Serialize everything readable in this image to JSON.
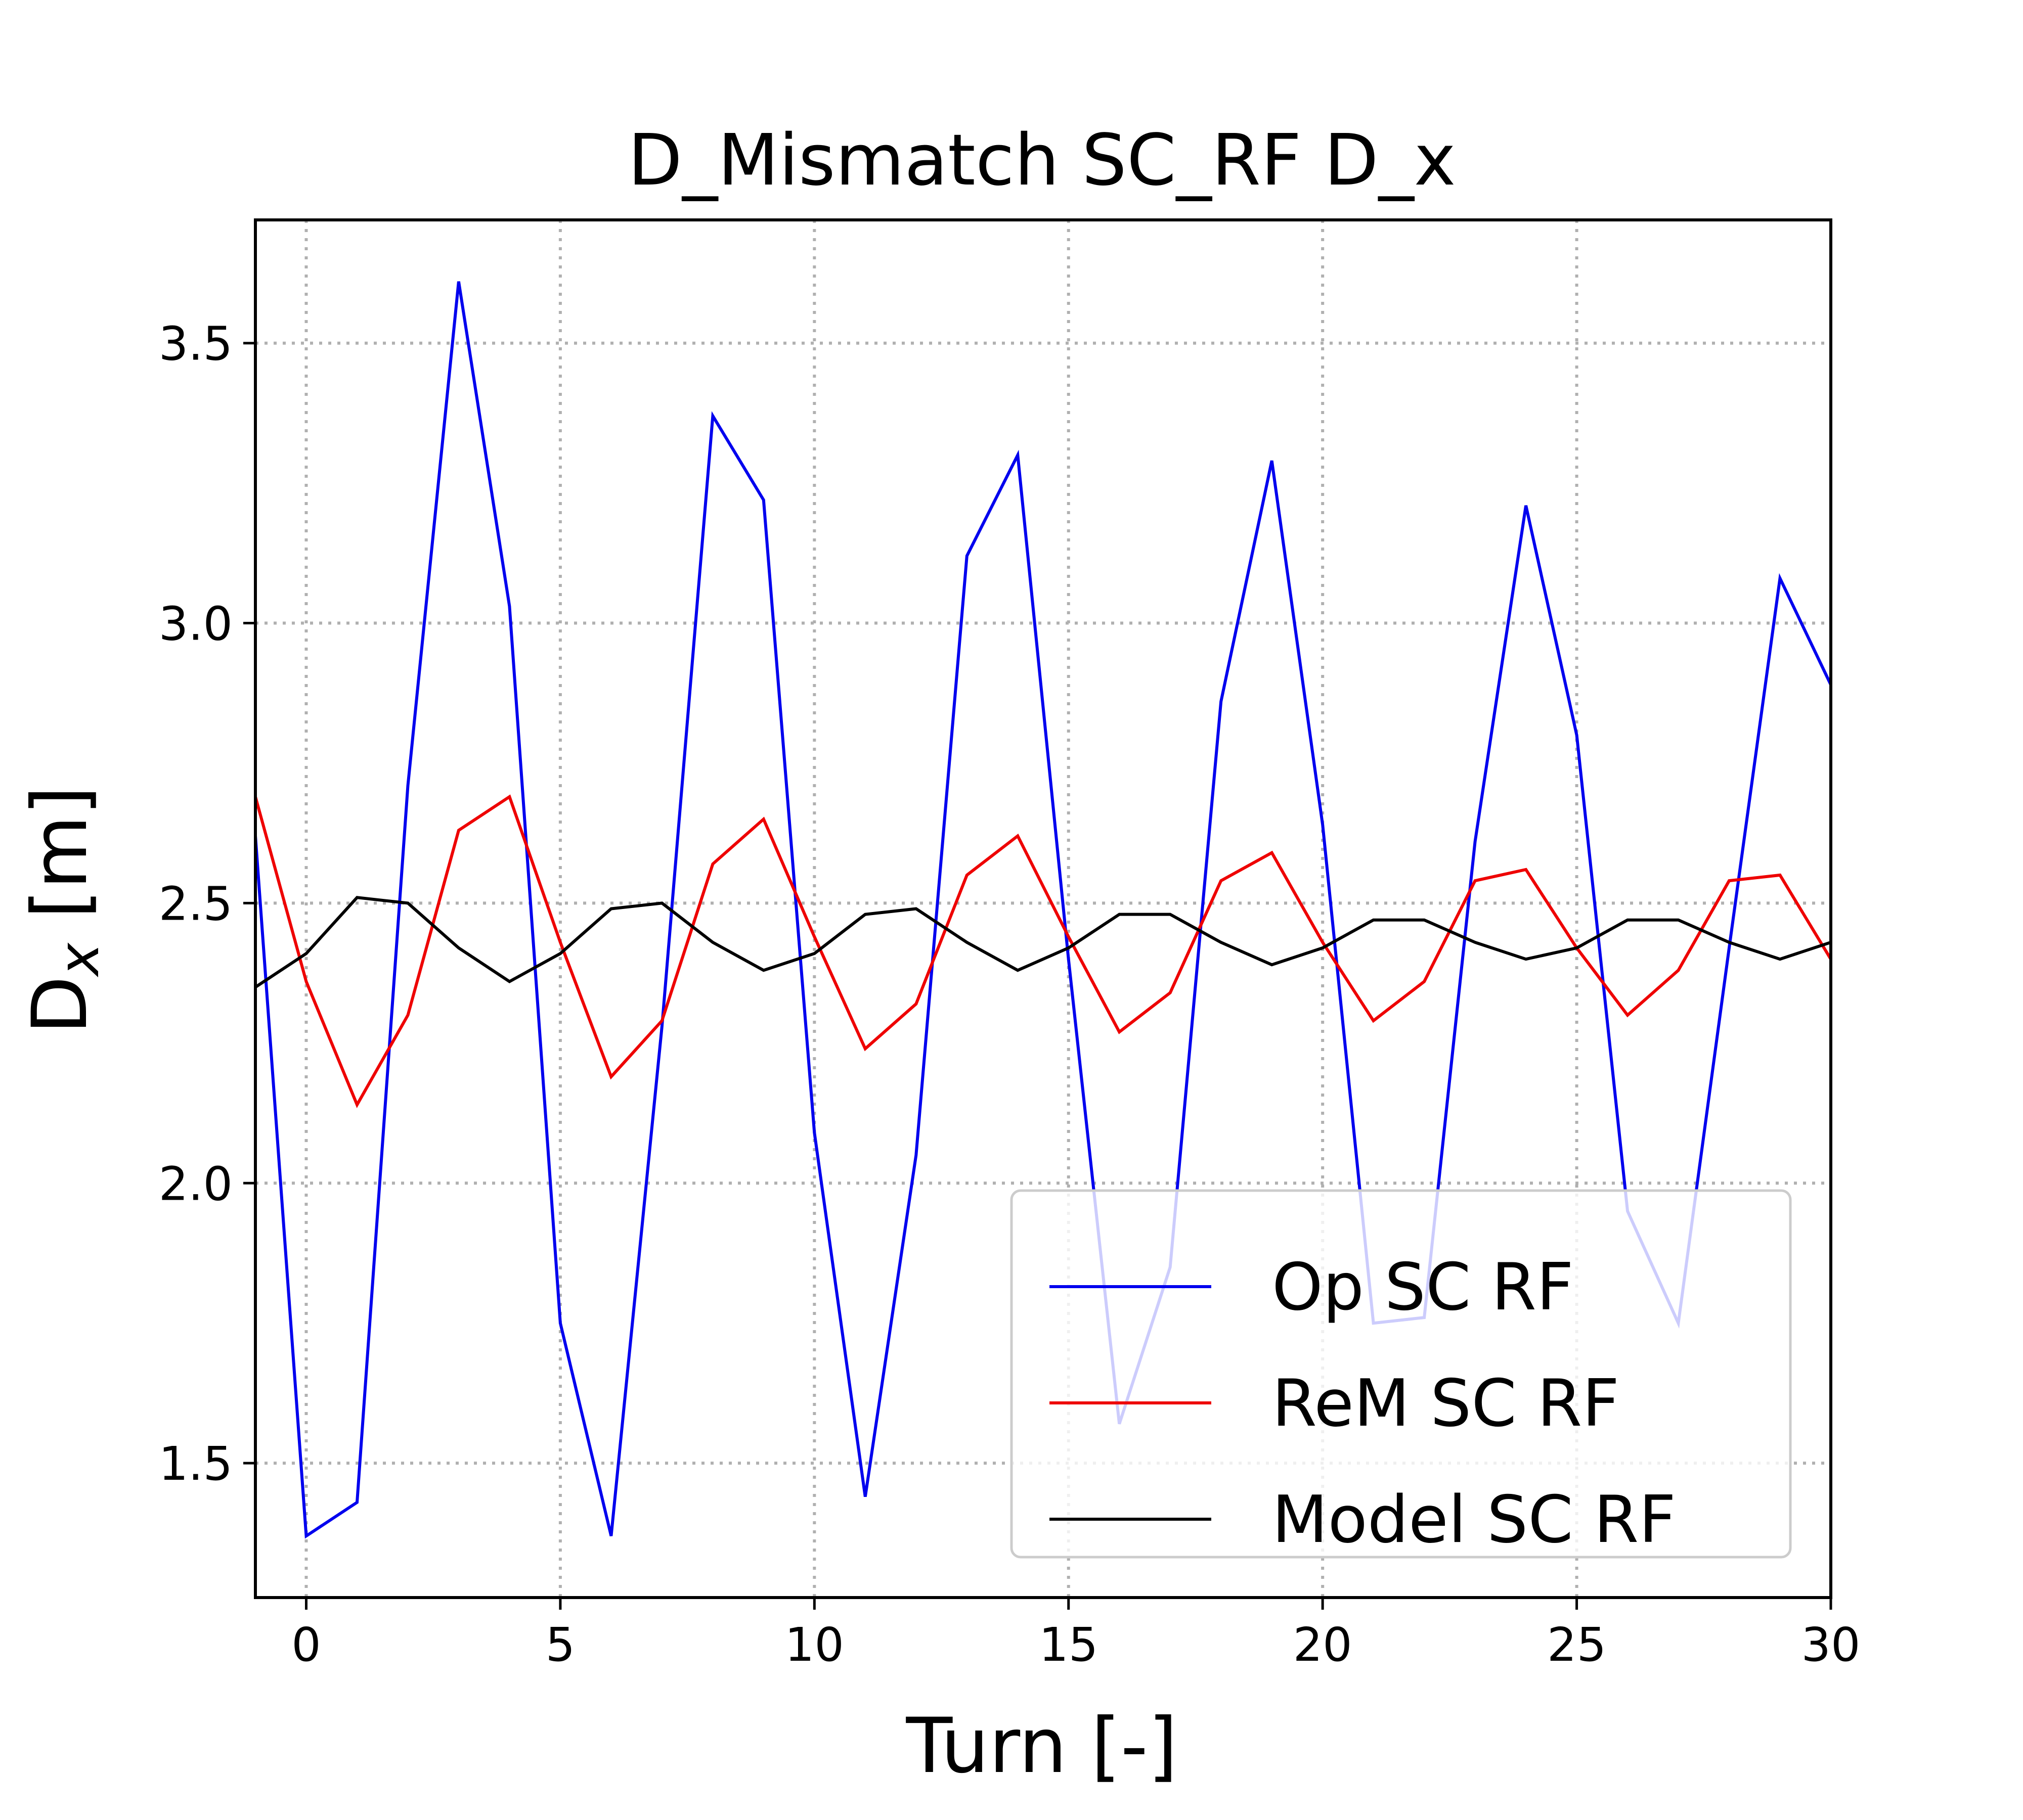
{
  "chart_data": {
    "type": "line",
    "title": "D_Mismatch SC_RF D_x",
    "xlabel": "Turn [-]",
    "ylabel_main": "D",
    "ylabel_sub": "x",
    "ylabel_unit": " [m]",
    "xlim": [
      -1,
      30
    ],
    "ylim": [
      1.26,
      3.72
    ],
    "xticks": [
      0,
      5,
      10,
      15,
      20,
      25,
      30
    ],
    "xtick_labels": [
      "0",
      "5",
      "10",
      "15",
      "20",
      "25",
      "30"
    ],
    "yticks": [
      1.5,
      2.0,
      2.5,
      3.0,
      3.5
    ],
    "ytick_labels": [
      "1.5",
      "2.0",
      "2.5",
      "3.0",
      "3.5"
    ],
    "grid": true,
    "legend_position": "lower-right",
    "x": [
      -1,
      0,
      1,
      2,
      3,
      4,
      5,
      6,
      7,
      8,
      9,
      10,
      11,
      12,
      13,
      14,
      15,
      16,
      17,
      18,
      19,
      20,
      21,
      22,
      23,
      24,
      25,
      26,
      27,
      28,
      29,
      30
    ],
    "series": [
      {
        "name": "Op SC RF",
        "color": "#0000ee",
        "values": [
          2.62,
          1.37,
          1.43,
          2.71,
          3.61,
          3.03,
          1.75,
          1.37,
          2.28,
          3.37,
          3.22,
          2.09,
          1.44,
          2.05,
          3.12,
          3.3,
          2.4,
          1.57,
          1.85,
          2.86,
          3.29,
          2.64,
          1.75,
          1.76,
          2.61,
          3.21,
          2.8,
          1.95,
          1.75,
          2.42,
          3.08,
          2.89
        ]
      },
      {
        "name": "ReM SC RF",
        "color": "#ee0000",
        "values": [
          2.69,
          2.36,
          2.14,
          2.3,
          2.63,
          2.69,
          2.43,
          2.19,
          2.29,
          2.57,
          2.65,
          2.44,
          2.24,
          2.32,
          2.55,
          2.62,
          2.44,
          2.27,
          2.34,
          2.54,
          2.59,
          2.43,
          2.29,
          2.36,
          2.54,
          2.56,
          2.42,
          2.3,
          2.38,
          2.54,
          2.55,
          2.4
        ]
      },
      {
        "name": "Model SC RF",
        "color": "#000000",
        "values": [
          2.35,
          2.41,
          2.51,
          2.5,
          2.42,
          2.36,
          2.41,
          2.49,
          2.5,
          2.43,
          2.38,
          2.41,
          2.48,
          2.49,
          2.43,
          2.38,
          2.42,
          2.48,
          2.48,
          2.43,
          2.39,
          2.42,
          2.47,
          2.47,
          2.43,
          2.4,
          2.42,
          2.47,
          2.47,
          2.43,
          2.4,
          2.43
        ]
      }
    ]
  }
}
